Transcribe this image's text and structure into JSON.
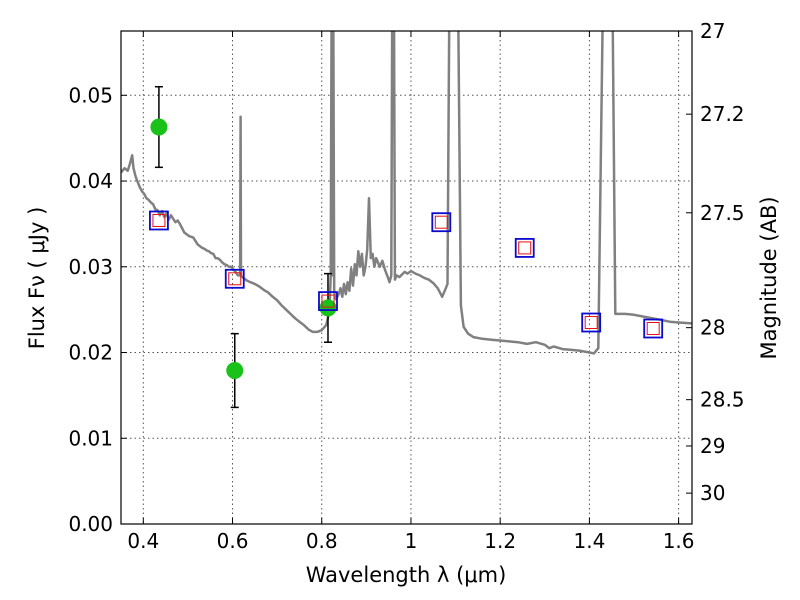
{
  "chart_data": {
    "type": "scatter",
    "xlabel": "Wavelength  λ (μm)",
    "ylabel": "Flux  Fν  ( μJy )",
    "y2label": "Magnitude (AB)",
    "xlim": [
      0.35,
      1.63
    ],
    "ylim": [
      0.0,
      0.0575
    ],
    "x_ticks": [
      0.4,
      0.6,
      0.8,
      1.0,
      1.2,
      1.4,
      1.6
    ],
    "x_tick_labels": [
      "0.4",
      "0.6",
      "0.8",
      "1",
      "1.2",
      "1.4",
      "1.6"
    ],
    "y_ticks": [
      0.0,
      0.01,
      0.02,
      0.03,
      0.04,
      0.05
    ],
    "y_tick_labels": [
      "0.00",
      "0.01",
      "0.02",
      "0.03",
      "0.04",
      "0.05"
    ],
    "magnitude_ticks": [
      {
        "flux": 0.0575,
        "label": "27"
      },
      {
        "flux": 0.0478,
        "label": "27.2"
      },
      {
        "flux": 0.0363,
        "label": "27.5"
      },
      {
        "flux": 0.0229,
        "label": "28"
      },
      {
        "flux": 0.0145,
        "label": "28.5"
      },
      {
        "flux": 0.0091,
        "label": "29"
      },
      {
        "flux": 0.0036,
        "label": "30"
      }
    ],
    "grid": true,
    "colors": {
      "model": "#808080",
      "observed": "#19c219",
      "model_photometry": "#0a0ad0",
      "inner_square": "#e81010",
      "errorbar": "#000000"
    },
    "series": [
      {
        "kind": "line",
        "points": [
          [
            0.35,
            0.041
          ],
          [
            0.358,
            0.0415
          ],
          [
            0.365,
            0.0412
          ],
          [
            0.37,
            0.042
          ],
          [
            0.375,
            0.043
          ],
          [
            0.378,
            0.0415
          ],
          [
            0.383,
            0.0405
          ],
          [
            0.388,
            0.0398
          ],
          [
            0.392,
            0.0393
          ],
          [
            0.397,
            0.0388
          ],
          [
            0.402,
            0.0385
          ],
          [
            0.407,
            0.038
          ],
          [
            0.412,
            0.0378
          ],
          [
            0.417,
            0.0375
          ],
          [
            0.422,
            0.0373
          ],
          [
            0.427,
            0.0367
          ],
          [
            0.432,
            0.0366
          ],
          [
            0.437,
            0.036
          ],
          [
            0.442,
            0.0365
          ],
          [
            0.447,
            0.0358
          ],
          [
            0.452,
            0.0362
          ],
          [
            0.457,
            0.0355
          ],
          [
            0.462,
            0.036
          ],
          [
            0.467,
            0.0356
          ],
          [
            0.472,
            0.0352
          ],
          [
            0.477,
            0.0354
          ],
          [
            0.482,
            0.035
          ],
          [
            0.487,
            0.0345
          ],
          [
            0.492,
            0.034
          ],
          [
            0.497,
            0.0338
          ],
          [
            0.502,
            0.0336
          ],
          [
            0.507,
            0.0335
          ],
          [
            0.512,
            0.0334
          ],
          [
            0.517,
            0.033
          ],
          [
            0.522,
            0.0326
          ],
          [
            0.527,
            0.0324
          ],
          [
            0.532,
            0.0322
          ],
          [
            0.537,
            0.0321
          ],
          [
            0.542,
            0.0319
          ],
          [
            0.547,
            0.0318
          ],
          [
            0.552,
            0.0316
          ],
          [
            0.557,
            0.0315
          ],
          [
            0.562,
            0.031
          ],
          [
            0.567,
            0.031
          ],
          [
            0.572,
            0.0308
          ],
          [
            0.577,
            0.0305
          ],
          [
            0.582,
            0.0303
          ],
          [
            0.587,
            0.0302
          ],
          [
            0.592,
            0.03
          ],
          [
            0.597,
            0.03
          ],
          [
            0.602,
            0.0297
          ],
          [
            0.607,
            0.0294
          ],
          [
            0.612,
            0.029
          ],
          [
            0.617,
            0.029
          ],
          [
            0.618,
            0.0475
          ],
          [
            0.619,
            0.029
          ],
          [
            0.622,
            0.0288
          ],
          [
            0.627,
            0.0286
          ],
          [
            0.632,
            0.0284
          ],
          [
            0.64,
            0.0282
          ],
          [
            0.65,
            0.028
          ],
          [
            0.66,
            0.0277
          ],
          [
            0.67,
            0.0273
          ],
          [
            0.68,
            0.027
          ],
          [
            0.69,
            0.0265
          ],
          [
            0.7,
            0.0261
          ],
          [
            0.71,
            0.0255
          ],
          [
            0.72,
            0.025
          ],
          [
            0.73,
            0.0245
          ],
          [
            0.74,
            0.024
          ],
          [
            0.75,
            0.0236
          ],
          [
            0.76,
            0.0232
          ],
          [
            0.77,
            0.0227
          ],
          [
            0.78,
            0.0224
          ],
          [
            0.79,
            0.0224
          ],
          [
            0.8,
            0.0226
          ],
          [
            0.81,
            0.0232
          ],
          [
            0.815,
            0.0243
          ],
          [
            0.818,
            0.026
          ],
          [
            0.82,
            0.029
          ],
          [
            0.822,
            0.06
          ],
          [
            0.824,
            0.029
          ],
          [
            0.826,
            0.06
          ],
          [
            0.828,
            0.027
          ],
          [
            0.832,
            0.0262
          ],
          [
            0.838,
            0.0268
          ],
          [
            0.842,
            0.0275
          ],
          [
            0.846,
            0.0265
          ],
          [
            0.85,
            0.028
          ],
          [
            0.854,
            0.0268
          ],
          [
            0.858,
            0.0282
          ],
          [
            0.862,
            0.0272
          ],
          [
            0.866,
            0.0298
          ],
          [
            0.87,
            0.0278
          ],
          [
            0.874,
            0.0303
          ],
          [
            0.878,
            0.029
          ],
          [
            0.882,
            0.0318
          ],
          [
            0.886,
            0.03
          ],
          [
            0.89,
            0.0315
          ],
          [
            0.894,
            0.029
          ],
          [
            0.898,
            0.03
          ],
          [
            0.902,
            0.032
          ],
          [
            0.906,
            0.038
          ],
          [
            0.91,
            0.031
          ],
          [
            0.914,
            0.0315
          ],
          [
            0.918,
            0.03
          ],
          [
            0.922,
            0.031
          ],
          [
            0.926,
            0.0305
          ],
          [
            0.93,
            0.03
          ],
          [
            0.936,
            0.0307
          ],
          [
            0.942,
            0.0296
          ],
          [
            0.948,
            0.0288
          ],
          [
            0.952,
            0.0282
          ],
          [
            0.956,
            0.029
          ],
          [
            0.958,
            0.06
          ],
          [
            0.962,
            0.06
          ],
          [
            0.964,
            0.0285
          ],
          [
            0.968,
            0.029
          ],
          [
            0.974,
            0.0288
          ],
          [
            0.98,
            0.0291
          ],
          [
            0.986,
            0.0294
          ],
          [
            0.992,
            0.0292
          ],
          [
            1.0,
            0.0295
          ],
          [
            1.01,
            0.0292
          ],
          [
            1.02,
            0.029
          ],
          [
            1.03,
            0.0287
          ],
          [
            1.04,
            0.0285
          ],
          [
            1.05,
            0.0281
          ],
          [
            1.06,
            0.0275
          ],
          [
            1.07,
            0.0265
          ],
          [
            1.078,
            0.0275
          ],
          [
            1.082,
            0.028
          ],
          [
            1.086,
            0.06
          ],
          [
            1.1,
            0.06
          ],
          [
            1.106,
            0.06
          ],
          [
            1.112,
            0.0255
          ],
          [
            1.118,
            0.023
          ],
          [
            1.128,
            0.0222
          ],
          [
            1.14,
            0.0218
          ],
          [
            1.16,
            0.0216
          ],
          [
            1.18,
            0.0215
          ],
          [
            1.2,
            0.0214
          ],
          [
            1.22,
            0.0213
          ],
          [
            1.24,
            0.0212
          ],
          [
            1.26,
            0.021
          ],
          [
            1.28,
            0.0212
          ],
          [
            1.3,
            0.0209
          ],
          [
            1.31,
            0.0205
          ],
          [
            1.32,
            0.0207
          ],
          [
            1.34,
            0.0204
          ],
          [
            1.36,
            0.0203
          ],
          [
            1.38,
            0.0202
          ],
          [
            1.4,
            0.02
          ],
          [
            1.41,
            0.0199
          ],
          [
            1.42,
            0.0205
          ],
          [
            1.43,
            0.06
          ],
          [
            1.446,
            0.06
          ],
          [
            1.452,
            0.06
          ],
          [
            1.458,
            0.0245
          ],
          [
            1.48,
            0.0245
          ],
          [
            1.5,
            0.0244
          ],
          [
            1.52,
            0.0242
          ],
          [
            1.54,
            0.024
          ],
          [
            1.56,
            0.0238
          ],
          [
            1.58,
            0.0236
          ],
          [
            1.6,
            0.0235
          ],
          [
            1.63,
            0.0234
          ]
        ]
      },
      {
        "kind": "scatter",
        "marker": "circle",
        "points": [
          {
            "x": 0.435,
            "y": 0.0463,
            "yerr": 0.0047
          },
          {
            "x": 0.605,
            "y": 0.0179,
            "yerr": 0.0043
          },
          {
            "x": 0.814,
            "y": 0.0252,
            "yerr": 0.004
          }
        ]
      },
      {
        "kind": "scatter",
        "marker": "square",
        "points": [
          {
            "x": 0.435,
            "y": 0.0354
          },
          {
            "x": 0.605,
            "y": 0.0286
          },
          {
            "x": 0.814,
            "y": 0.026
          },
          {
            "x": 1.068,
            "y": 0.0352
          },
          {
            "x": 1.255,
            "y": 0.0322
          },
          {
            "x": 1.404,
            "y": 0.0235
          },
          {
            "x": 1.543,
            "y": 0.0228
          }
        ]
      }
    ]
  }
}
